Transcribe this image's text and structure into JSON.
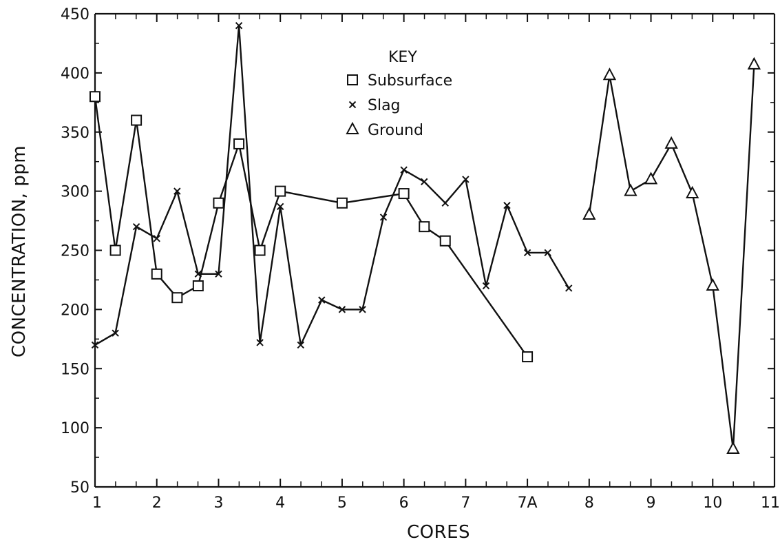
{
  "chart_data": {
    "type": "line",
    "xlabel": "CORES",
    "ylabel": "CONCENTRATION, ppm",
    "ylim": [
      50,
      450
    ],
    "y_ticks": [
      "50",
      "100",
      "150",
      "200",
      "250",
      "300",
      "350",
      "400",
      "450"
    ],
    "x_ticks": [
      {
        "label": "1",
        "pos": 1
      },
      {
        "label": "2",
        "pos": 2
      },
      {
        "label": "3",
        "pos": 3
      },
      {
        "label": "4",
        "pos": 4
      },
      {
        "label": "5",
        "pos": 5
      },
      {
        "label": "6",
        "pos": 6
      },
      {
        "label": "7",
        "pos": 7
      },
      {
        "label": "7A",
        "pos": 8
      },
      {
        "label": "8",
        "pos": 9
      },
      {
        "label": "9",
        "pos": 10
      },
      {
        "label": "10",
        "pos": 11
      },
      {
        "label": "11",
        "pos": 12
      }
    ],
    "xlim": [
      1,
      12
    ],
    "legend": {
      "title": "KEY",
      "placement": "top-center",
      "entries": [
        {
          "label": "Subsurface",
          "marker": "square"
        },
        {
          "label": "Slag",
          "marker": "x"
        },
        {
          "label": "Ground",
          "marker": "triangle"
        }
      ]
    },
    "series": [
      {
        "name": "Subsurface",
        "marker": "square",
        "x": [
          1.0,
          1.33,
          1.67,
          2.0,
          2.33,
          2.67,
          3.0,
          3.33,
          3.67,
          4.0,
          5.0,
          6.0,
          6.33,
          6.67,
          8.0
        ],
        "y": [
          380,
          250,
          360,
          230,
          210,
          220,
          290,
          340,
          250,
          300,
          290,
          298,
          270,
          258,
          160
        ]
      },
      {
        "name": "Slag",
        "marker": "x",
        "x": [
          1.0,
          1.33,
          1.67,
          2.0,
          2.33,
          2.67,
          3.0,
          3.33,
          3.67,
          4.0,
          4.33,
          4.67,
          5.0,
          5.33,
          5.67,
          6.0,
          6.33,
          6.67,
          7.0,
          7.33,
          7.67,
          8.0,
          8.33,
          8.67
        ],
        "y": [
          170,
          180,
          270,
          260,
          300,
          230,
          230,
          440,
          172,
          287,
          170,
          208,
          200,
          200,
          278,
          318,
          308,
          290,
          310,
          220,
          288,
          248,
          248,
          218
        ]
      },
      {
        "name": "Ground",
        "marker": "triangle",
        "x": [
          9.0,
          9.33,
          9.67,
          10.0,
          10.33,
          10.67,
          11.0,
          11.33,
          11.67
        ],
        "y": [
          280,
          398,
          300,
          310,
          340,
          298,
          220,
          82,
          407
        ]
      }
    ]
  }
}
